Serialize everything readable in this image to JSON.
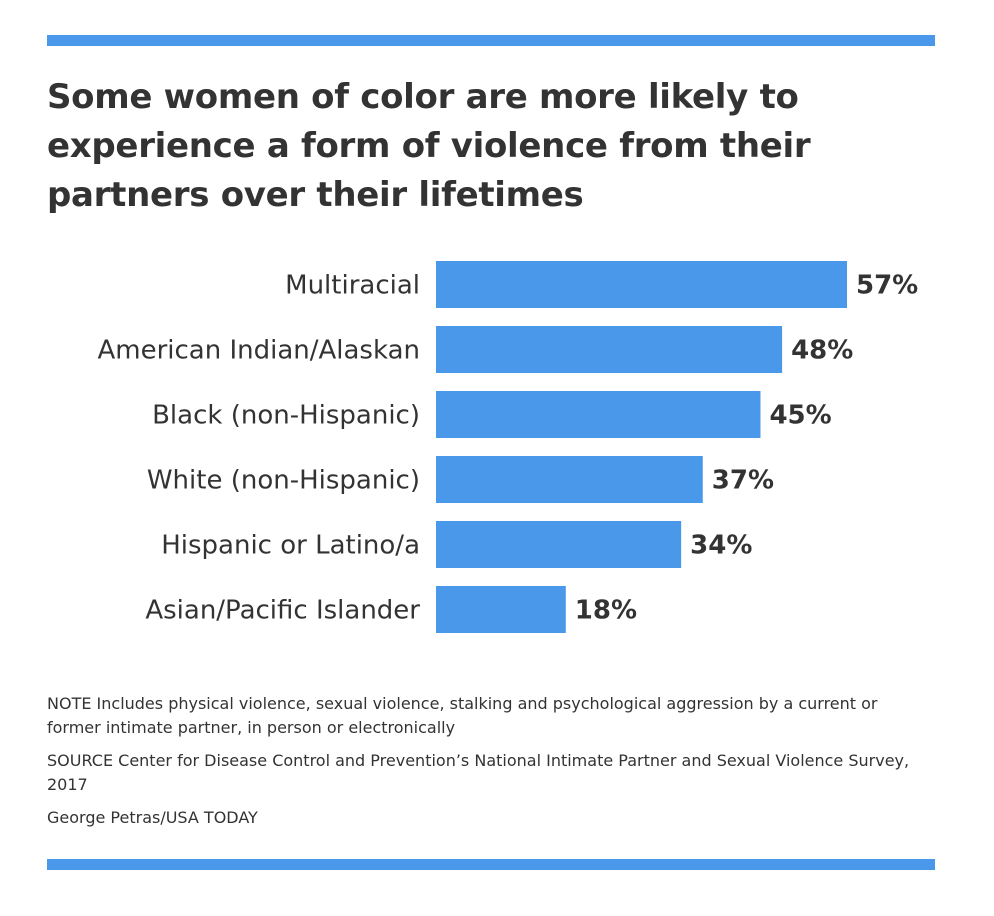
{
  "title": "Some women of color are more likely to experience a form of violence from their partners over their lifetimes",
  "chart_data": {
    "type": "bar",
    "orientation": "horizontal",
    "categories": [
      "Multiracial",
      "American Indian/Alaskan",
      "Black (non-Hispanic)",
      "White (non-Hispanic)",
      "Hispanic or Latino/a",
      "Asian/Pacific Islander"
    ],
    "values": [
      57,
      48,
      45,
      37,
      34,
      18
    ],
    "value_labels": [
      "57%",
      "48%",
      "45%",
      "37%",
      "34%",
      "18%"
    ],
    "xlim": [
      0,
      57
    ],
    "grid": false,
    "bar_color": "#4a98ea"
  },
  "notes": {
    "note": "NOTE Includes physical violence, sexual violence, stalking and psychological aggression by a current or former intimate partner, in person or electronically",
    "source": "SOURCE Center for Disease Control and Prevention’s National Intimate Partner and Sexual Violence Survey, 2017",
    "credit": "George Petras/USA TODAY"
  },
  "colors": {
    "accent": "#4a98ea",
    "text": "#333333"
  }
}
